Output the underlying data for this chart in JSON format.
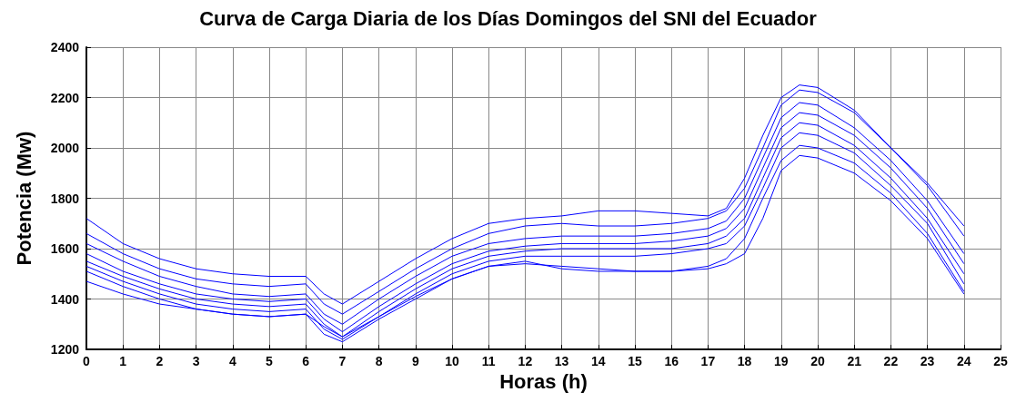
{
  "chart_data": {
    "type": "line",
    "title": "Curva de Carga Diaria de los Días Domingos del SNI del Ecuador",
    "xlabel": "Horas (h)",
    "ylabel": "Potencia (Mw)",
    "x": [
      0,
      1,
      2,
      3,
      4,
      5,
      6,
      6.5,
      7,
      8,
      9,
      10,
      11,
      12,
      13,
      14,
      15,
      16,
      17,
      17.5,
      18,
      18.5,
      19,
      19.5,
      20,
      21,
      22,
      23,
      24
    ],
    "series": [
      {
        "color": "#0000ff",
        "values": [
          1720,
          1620,
          1560,
          1520,
          1500,
          1490,
          1490,
          1420,
          1380,
          1470,
          1560,
          1640,
          1700,
          1720,
          1730,
          1750,
          1750,
          1740,
          1730,
          1760,
          1880,
          2050,
          2200,
          2250,
          2240,
          2150,
          2000,
          1860,
          1690
        ]
      },
      {
        "color": "#0000ff",
        "values": [
          1660,
          1580,
          1520,
          1480,
          1460,
          1450,
          1460,
          1380,
          1340,
          1430,
          1520,
          1600,
          1660,
          1690,
          1700,
          1690,
          1690,
          1700,
          1720,
          1750,
          1840,
          2000,
          2170,
          2230,
          2220,
          2140,
          2000,
          1850,
          1650
        ]
      },
      {
        "color": "#0000ff",
        "values": [
          1620,
          1550,
          1490,
          1450,
          1420,
          1410,
          1420,
          1340,
          1300,
          1400,
          1490,
          1570,
          1620,
          1640,
          1650,
          1650,
          1650,
          1660,
          1680,
          1710,
          1800,
          1960,
          2120,
          2180,
          2170,
          2080,
          1950,
          1790,
          1580
        ]
      },
      {
        "color": "#0000ff",
        "values": [
          1580,
          1510,
          1460,
          1420,
          1400,
          1390,
          1400,
          1320,
          1270,
          1370,
          1460,
          1540,
          1590,
          1610,
          1620,
          1620,
          1620,
          1630,
          1650,
          1680,
          1760,
          1920,
          2080,
          2140,
          2130,
          2050,
          1920,
          1760,
          1540
        ]
      },
      {
        "color": "#0000ff",
        "values": [
          1550,
          1490,
          1440,
          1400,
          1380,
          1370,
          1380,
          1300,
          1250,
          1350,
          1440,
          1520,
          1570,
          1590,
          1600,
          1600,
          1600,
          1600,
          1620,
          1650,
          1720,
          1880,
          2040,
          2100,
          2090,
          2010,
          1880,
          1720,
          1500
        ]
      },
      {
        "color": "#0000ff",
        "values": [
          1530,
          1470,
          1420,
          1380,
          1360,
          1350,
          1360,
          1280,
          1240,
          1330,
          1420,
          1500,
          1550,
          1570,
          1570,
          1570,
          1570,
          1580,
          1600,
          1620,
          1690,
          1840,
          2000,
          2060,
          2050,
          1980,
          1850,
          1700,
          1460
        ]
      },
      {
        "color": "#0000ff",
        "values": [
          1510,
          1450,
          1400,
          1360,
          1340,
          1330,
          1340,
          1260,
          1230,
          1320,
          1400,
          1480,
          1530,
          1540,
          1530,
          1520,
          1510,
          1510,
          1530,
          1560,
          1640,
          1800,
          1950,
          2010,
          2000,
          1940,
          1820,
          1660,
          1430
        ]
      },
      {
        "color": "#0000ff",
        "values": [
          1470,
          1420,
          1380,
          1360,
          1340,
          1330,
          1340,
          1290,
          1250,
          1330,
          1410,
          1480,
          1530,
          1550,
          1520,
          1510,
          1510,
          1510,
          1520,
          1540,
          1580,
          1720,
          1910,
          1970,
          1960,
          1900,
          1790,
          1640,
          1420
        ]
      }
    ],
    "xlim": [
      0,
      25
    ],
    "xticks": [
      0,
      1,
      2,
      3,
      4,
      5,
      6,
      7,
      8,
      9,
      10,
      11,
      12,
      13,
      14,
      15,
      16,
      17,
      18,
      19,
      20,
      21,
      22,
      23,
      24,
      25
    ],
    "ylim": [
      1200,
      2400
    ],
    "yticks": [
      1200,
      1400,
      1600,
      1800,
      2000,
      2200,
      2400
    ],
    "grid": true,
    "marker": "none",
    "line_style": "solid"
  }
}
